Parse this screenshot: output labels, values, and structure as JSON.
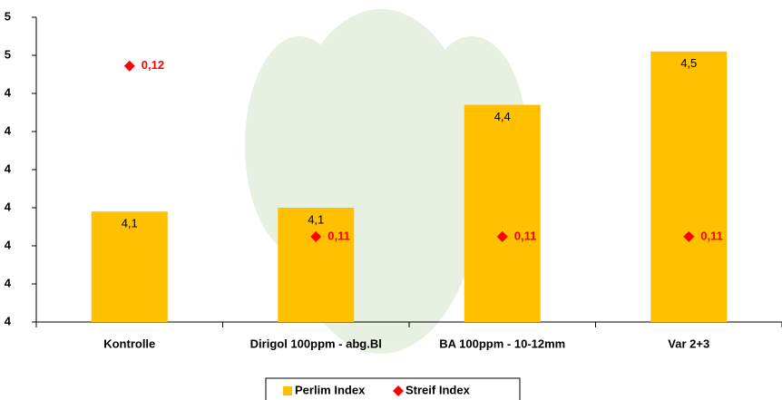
{
  "chart_data": {
    "type": "bar",
    "categories": [
      "Kontrolle",
      "Dirigol 100ppm - abg.Bl",
      "BA 100ppm - 10-12mm",
      "Var 2+3"
    ],
    "series": [
      {
        "name": "Perlim Index",
        "color": "#ffc000",
        "type": "bar",
        "values": [
          4.09,
          4.1,
          4.37,
          4.51
        ],
        "value_labels": [
          "4,1",
          "4,1",
          "4,4",
          "4,5"
        ]
      },
      {
        "name": "Streif Index",
        "color": "#ff0000",
        "type": "scatter",
        "axis": "y2",
        "values": [
          0.1208,
          0.1096,
          0.1096,
          0.1096
        ],
        "value_labels": [
          "0,12",
          "0,11",
          "0,11",
          "0,11"
        ]
      }
    ],
    "ylim": [
      3.8,
      4.6
    ],
    "yticks": [
      {
        "value": 3.8,
        "label": "4"
      },
      {
        "value": 3.9,
        "label": "4"
      },
      {
        "value": 4.0,
        "label": "4"
      },
      {
        "value": 4.1,
        "label": "4"
      },
      {
        "value": 4.2,
        "label": "4"
      },
      {
        "value": 4.3,
        "label": "4"
      },
      {
        "value": 4.4,
        "label": "4"
      },
      {
        "value": 4.5,
        "label": "5"
      },
      {
        "value": 4.6,
        "label": "5"
      }
    ],
    "y2lim": [
      0.104,
      0.124
    ],
    "legend": "bottom"
  }
}
